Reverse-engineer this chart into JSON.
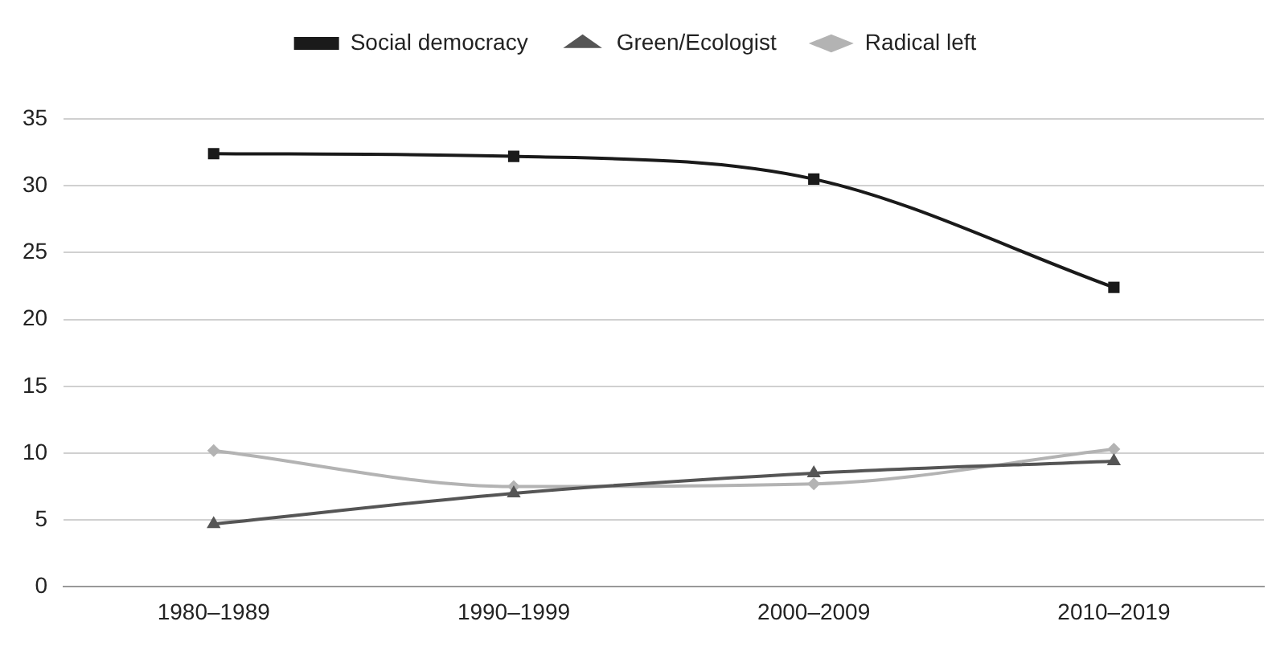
{
  "chart_data": {
    "type": "line",
    "categories": [
      "1980–1989",
      "1990–1999",
      "2000–2009",
      "2010–2019"
    ],
    "series": [
      {
        "name": "Social democracy",
        "color": "#1a1a1a",
        "marker": "square",
        "values": [
          32.4,
          32.2,
          30.5,
          22.4
        ]
      },
      {
        "name": "Green/Ecologist",
        "color": "#555555",
        "marker": "triangle",
        "values": [
          4.7,
          7.0,
          8.5,
          9.4
        ]
      },
      {
        "name": "Radical left",
        "color": "#b3b3b3",
        "marker": "diamond",
        "values": [
          10.2,
          7.5,
          7.7,
          10.3
        ]
      }
    ],
    "ylim": [
      0,
      35
    ],
    "yticks": [
      0,
      5,
      10,
      15,
      20,
      25,
      30,
      35
    ],
    "grid": "y",
    "legend": "top"
  }
}
